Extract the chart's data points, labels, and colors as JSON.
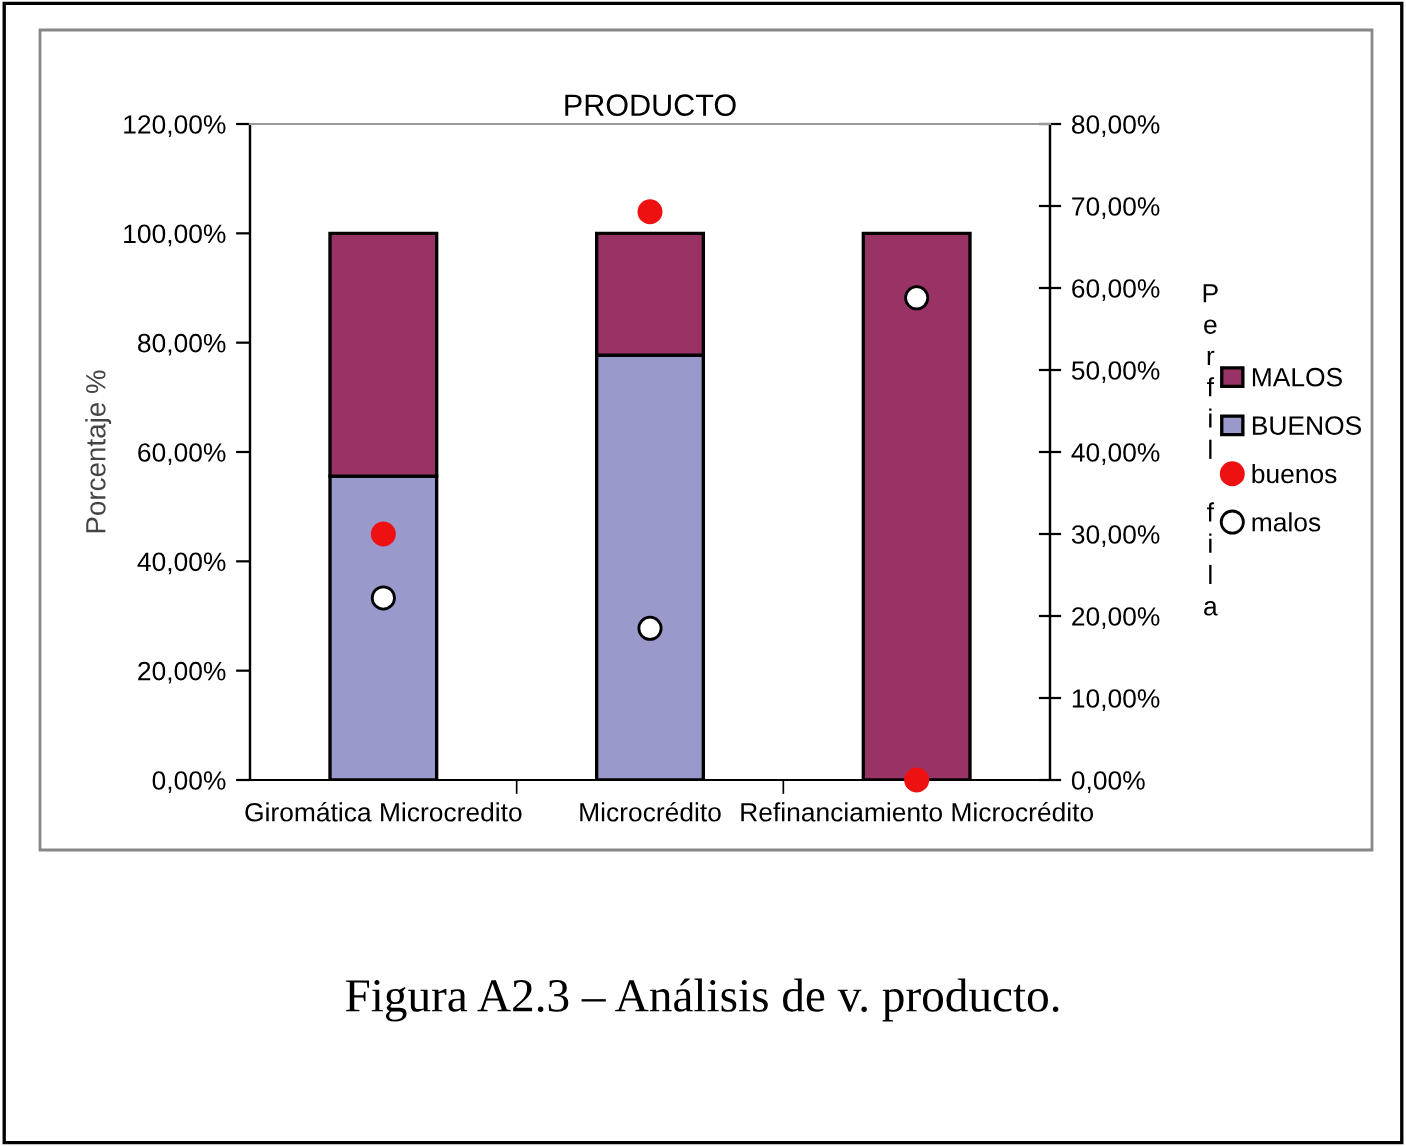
{
  "chart_data": {
    "type": "bar",
    "stacked": true,
    "title": "PRODUCTO",
    "ylabel": "Porcentaje %",
    "y2label": "Perfil fila",
    "categories": [
      "Giromática Microcredito",
      "Microcrédito",
      "Refinanciamiento Microcrédito"
    ],
    "series": [
      {
        "name": "BUENOS",
        "color": "#9999cc",
        "values": [
          55.6,
          77.7,
          0
        ]
      },
      {
        "name": "MALOS",
        "color": "#993366",
        "values": [
          44.4,
          22.3,
          100
        ]
      },
      {
        "name": "buenos",
        "type": "scatter",
        "axis": "y2",
        "color": "#ee1111",
        "values": [
          30,
          69.3,
          0
        ]
      },
      {
        "name": "malos",
        "type": "scatter",
        "axis": "y2",
        "color": "#ffffff",
        "values": [
          22.2,
          18.5,
          58.8
        ]
      }
    ],
    "ylim": [
      0,
      120
    ],
    "yticks": [
      {
        "value": 0,
        "label": "0,00%"
      },
      {
        "value": 20,
        "label": "20,00%"
      },
      {
        "value": 40,
        "label": "40,00%"
      },
      {
        "value": 60,
        "label": "60,00%"
      },
      {
        "value": 80,
        "label": "80,00%"
      },
      {
        "value": 100,
        "label": "100,00%"
      },
      {
        "value": 120,
        "label": "120,00%"
      }
    ],
    "y2lim": [
      0,
      80
    ],
    "y2ticks": [
      {
        "value": 0,
        "label": "0,00%"
      },
      {
        "value": 10,
        "label": "10,00%"
      },
      {
        "value": 20,
        "label": "20,00%"
      },
      {
        "value": 30,
        "label": "30,00%"
      },
      {
        "value": 40,
        "label": "40,00%"
      },
      {
        "value": 50,
        "label": "50,00%"
      },
      {
        "value": 60,
        "label": "60,00%"
      },
      {
        "value": 70,
        "label": "70,00%"
      },
      {
        "value": 80,
        "label": "80,00%"
      }
    ],
    "marker": "circle",
    "legend": "right",
    "grid": false,
    "annotations": [
      "Figura A2.3 – Análisis de v. producto."
    ]
  }
}
